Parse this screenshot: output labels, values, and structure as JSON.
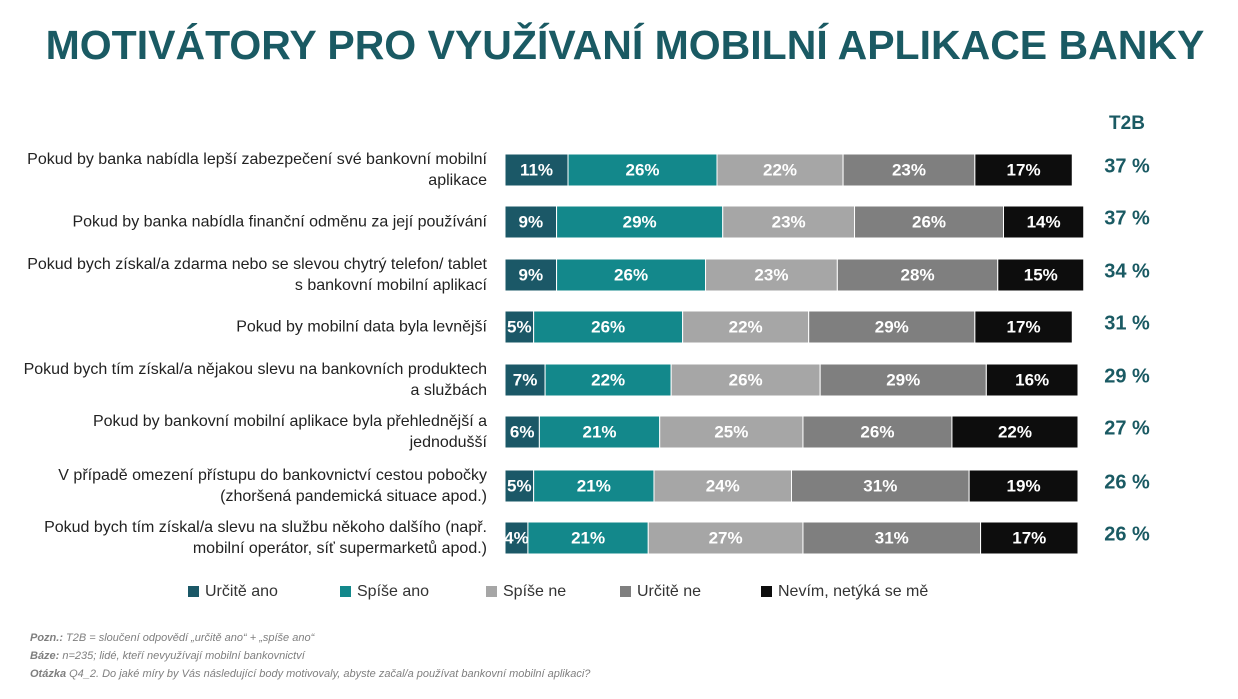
{
  "chart_data": {
    "type": "stacked-bar",
    "title": "MOTIVÁTORY PRO VYUŽÍVANÍ MOBILNÍ APLIKACE BANKY",
    "categories": [
      "Pokud by banka nabídla lepší zabezpečení své bankovní mobilní aplikace",
      "Pokud by banka nabídla finanční odměnu za její používání",
      "Pokud bych získal/a zdarma nebo se slevou chytrý telefon/ tablet s bankovní mobilní aplikací",
      "Pokud by mobilní data byla levnější",
      "Pokud bych tím získal/a nějakou slevu na bankovních produktech a službách",
      "Pokud by bankovní mobilní aplikace byla přehlednější a jednodušší",
      "V případě omezení přístupu do bankovnictví cestou pobočky (zhoršená pandemická situace apod.)",
      "Pokud bych tím získal/a slevu na službu někoho dalšího (např. mobilní operátor, síť supermarketů apod.)"
    ],
    "xlim": [
      0,
      100
    ],
    "series": [
      {
        "name": "Určitě ano",
        "color": "#1b5867",
        "values": [
          11,
          9,
          9,
          5,
          7,
          6,
          5,
          4
        ],
        "value_labels": [
          "11%",
          "9%",
          "9%",
          "5%",
          "7%",
          "6%",
          "5%",
          "4%"
        ]
      },
      {
        "name": "Spíše ano",
        "color": "#13888b",
        "values": [
          26,
          29,
          26,
          26,
          22,
          21,
          21,
          21
        ],
        "value_labels": [
          "26%",
          "29%",
          "26%",
          "26%",
          "22%",
          "21%",
          "21%",
          "21%"
        ]
      },
      {
        "name": "Spíše ne",
        "color": "#a6a6a6",
        "values": [
          22,
          23,
          23,
          22,
          26,
          25,
          24,
          27
        ],
        "value_labels": [
          "22%",
          "23%",
          "23%",
          "22%",
          "26%",
          "25%",
          "24%",
          "27%"
        ]
      },
      {
        "name": "Určitě ne",
        "color": "#7f7f7f",
        "values": [
          23,
          26,
          28,
          29,
          29,
          26,
          31,
          31
        ],
        "value_labels": [
          "23%",
          "26%",
          "28%",
          "29%",
          "29%",
          "26%",
          "31%",
          "31%"
        ]
      },
      {
        "name": "Nevím, netýká se mě",
        "color": "#0d0d0d",
        "values": [
          17,
          14,
          15,
          17,
          16,
          22,
          19,
          17
        ],
        "value_labels": [
          "17%",
          "14%",
          "15%",
          "17%",
          "16%",
          "22%",
          "19%",
          "17%"
        ]
      }
    ],
    "t2b": {
      "label": "T2B",
      "values": [
        37,
        37,
        34,
        31,
        29,
        27,
        26,
        26
      ],
      "value_labels": [
        "37 %",
        "37 %",
        "34 %",
        "31 %",
        "29 %",
        "27 %",
        "26 %",
        "26 %"
      ]
    },
    "notes": [
      {
        "label": "Pozn.:",
        "text": "T2B = sloučení odpovědí „určitě ano“ + „spíše ano“"
      },
      {
        "label": "Báze:",
        "text": "n=235; lidé, kteří nevyužívají mobilní bankovnictví"
      },
      {
        "label": "Otázka",
        "text": "Q4_2. Do jaké míry by Vás následující body motivovaly, abyste začal/a používat bankovní mobilní aplikaci?"
      }
    ]
  }
}
